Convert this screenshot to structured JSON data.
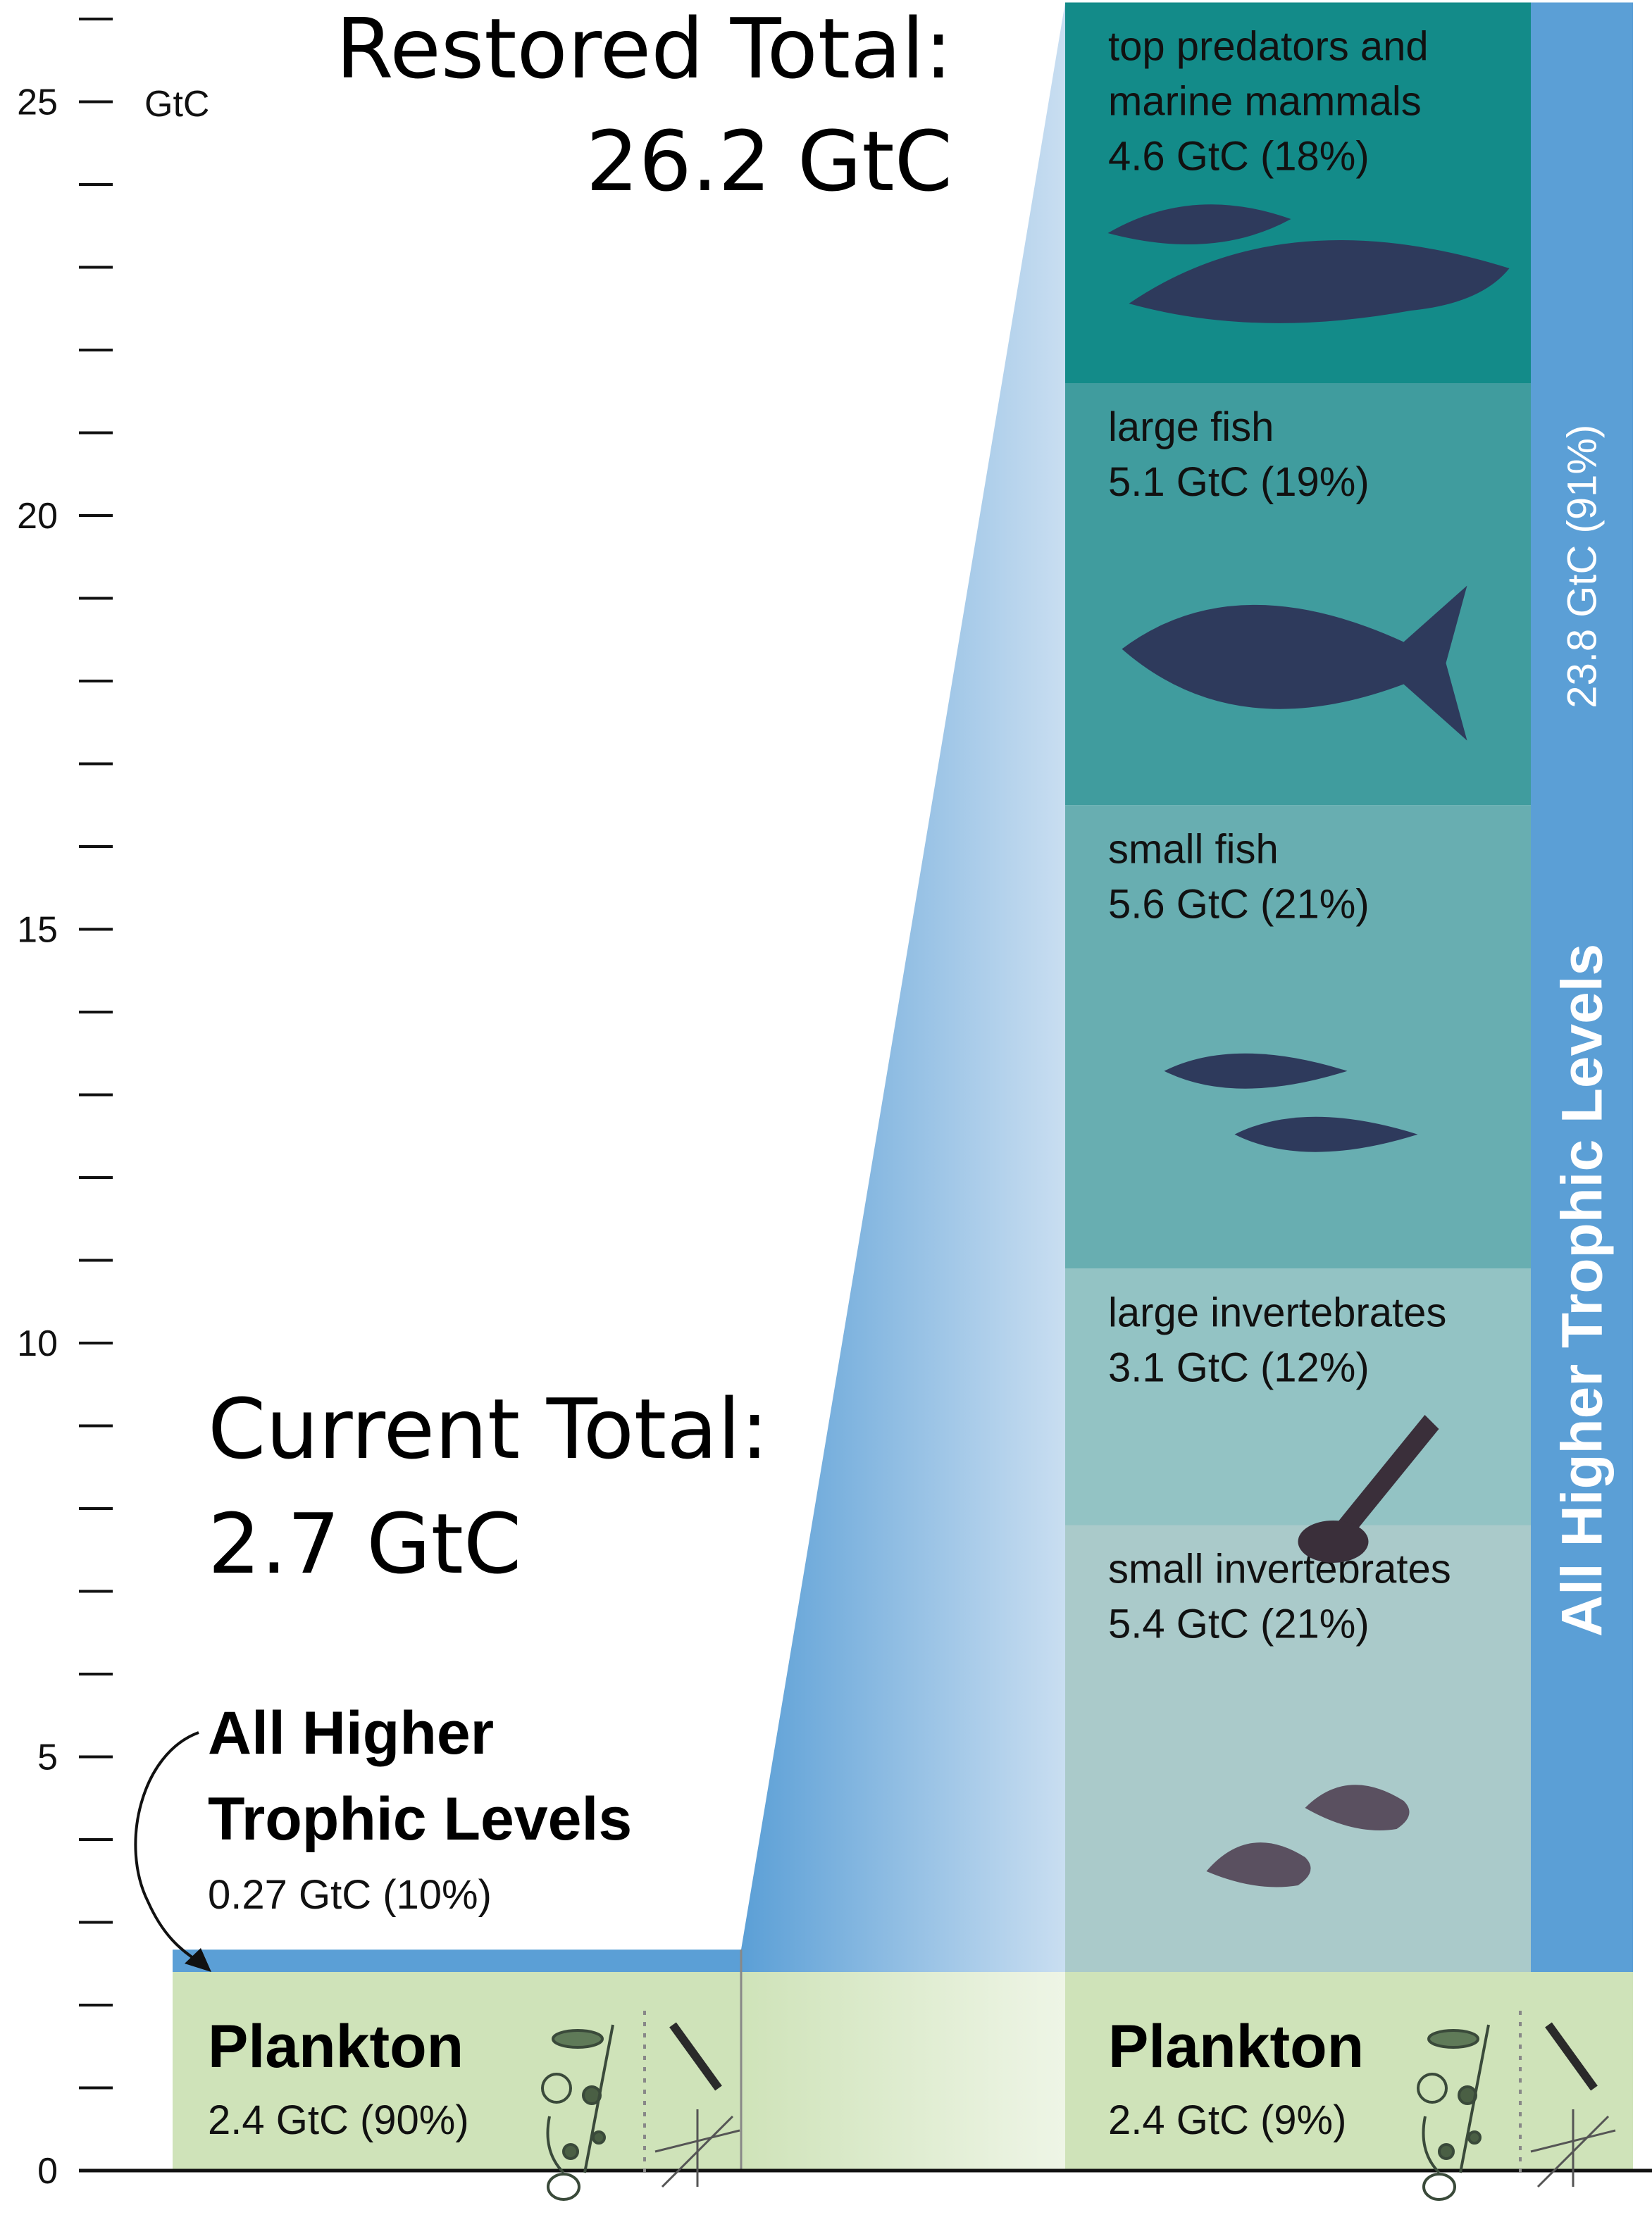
{
  "chart_data": {
    "type": "bar",
    "ylim": [
      0,
      26.2
    ],
    "yticks": [
      0,
      5,
      10,
      15,
      20,
      25
    ],
    "unit_label": "GtC",
    "categories": [
      "current",
      "restored"
    ],
    "current": {
      "total_line1": "Current Total:",
      "total_line2": "2.7 GtC",
      "plankton": {
        "label": "Plankton",
        "value": 2.4,
        "text": "2.4 GtC (90%)"
      },
      "higher": {
        "label_line1": "All Higher",
        "label_line2": "Trophic Levels",
        "value": 0.27,
        "text": "0.27 GtC (10%)"
      }
    },
    "restored": {
      "total_line1": "Restored Total:",
      "total_line2": "26.2 GtC",
      "plankton": {
        "label": "Plankton",
        "value": 2.4,
        "text": "2.4 GtC (9%)"
      },
      "higher_total": {
        "label": "All Higher Trophic Levels",
        "value": 23.8,
        "text": "23.8 GtC (91%)"
      },
      "segments": [
        {
          "name": "small invertebrates",
          "value": 5.4,
          "text": "5.4 GtC (21%)",
          "color": "#aacaca",
          "icon": "shrimp-icon"
        },
        {
          "name": "large invertebrates",
          "value": 3.1,
          "text": "3.1 GtC (12%)",
          "color": "#93c3c4",
          "icon": "lobster-icon"
        },
        {
          "name": "small fish",
          "value": 5.6,
          "text": "5.6 GtC (21%)",
          "color": "#68aeb1",
          "icon": "small-fish-icon"
        },
        {
          "name": "large fish",
          "value": 5.1,
          "text": "5.1 GtC (19%)",
          "color": "#409c9e",
          "icon": "tuna-icon"
        },
        {
          "name_line1": "top predators and",
          "name_line2": "marine mammals",
          "value": 4.6,
          "text": "4.6 GtC (18%)",
          "color": "#138b89",
          "icon": "shark-orca-icon"
        }
      ]
    },
    "colors": {
      "plankton": "#cfe3b9",
      "higher": "#5b9fd6",
      "text": "#111111",
      "icon": "#2e3a5c"
    }
  }
}
